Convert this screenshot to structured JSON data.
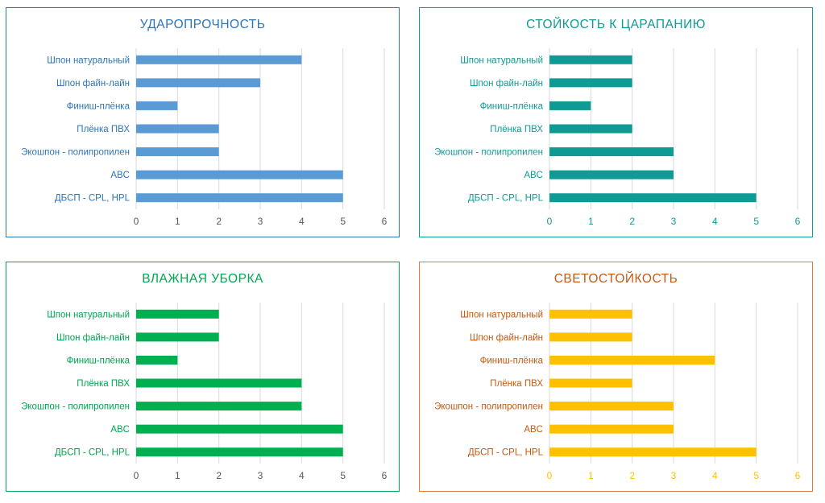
{
  "chart_data": [
    {
      "type": "bar",
      "orientation": "horizontal",
      "title": "УДАРОПРОЧНОСТЬ",
      "categories": [
        "Шпон натуральный",
        "Шпон файн-лайн",
        "Финиш-плёнка",
        "Плёнка ПВХ",
        "Экошпон - полипропилен",
        "ABC",
        "ДБСП - CPL, HPL"
      ],
      "values": [
        4,
        3,
        1,
        2,
        2,
        5,
        5
      ],
      "xlim": [
        0,
        6
      ],
      "xticks": [
        "0",
        "1",
        "2",
        "3",
        "4",
        "5",
        "6"
      ],
      "grid": "vertical",
      "colors": {
        "bar": "#5b9bd5",
        "text": "#2e75b6",
        "border": "#2e75b6",
        "ticks": "#595959"
      }
    },
    {
      "type": "bar",
      "orientation": "horizontal",
      "title": "СТОЙКОСТЬ К ЦАРАПАНИЮ",
      "categories": [
        "Шпон натуральный",
        "Шпон файн-лайн",
        "Финиш-плёнка",
        "Плёнка ПВХ",
        "Экошпон - полипропилен",
        "ABC",
        "ДБСП - CPL, HPL"
      ],
      "values": [
        2,
        2,
        1,
        2,
        3,
        3,
        5
      ],
      "xlim": [
        0,
        6
      ],
      "xticks": [
        "0",
        "1",
        "2",
        "3",
        "4",
        "5",
        "6"
      ],
      "grid": "vertical",
      "colors": {
        "bar": "#0f9b94",
        "text": "#0f9b94",
        "border": "#0f9b94",
        "ticks": "#0f9b94"
      }
    },
    {
      "type": "bar",
      "orientation": "horizontal",
      "title": "ВЛАЖНАЯ УБОРКА",
      "categories": [
        "Шпон натуральный",
        "Шпон файн-лайн",
        "Финиш-плёнка",
        "Плёнка ПВХ",
        "Экошпон - полипропилен",
        "ABC",
        "ДБСП - CPL, HPL"
      ],
      "values": [
        2,
        2,
        1,
        4,
        4,
        5,
        5
      ],
      "xlim": [
        0,
        6
      ],
      "xticks": [
        "0",
        "1",
        "2",
        "3",
        "4",
        "5",
        "6"
      ],
      "grid": "vertical",
      "colors": {
        "bar": "#00b050",
        "text": "#00a651",
        "border": "#00a651",
        "ticks": "#595959"
      }
    },
    {
      "type": "bar",
      "orientation": "horizontal",
      "title": "СВЕТОСТОЙКОСТЬ",
      "categories": [
        "Шпон натуральный",
        "Шпон файн-лайн",
        "Финиш-плёнка",
        "Плёнка ПВХ",
        "Экошпон - полипропилен",
        "ABC",
        "ДБСП - CPL, HPL"
      ],
      "values": [
        2,
        2,
        4,
        2,
        3,
        3,
        5
      ],
      "xlim": [
        0,
        6
      ],
      "xticks": [
        "0",
        "1",
        "2",
        "3",
        "4",
        "5",
        "6"
      ],
      "grid": "vertical",
      "colors": {
        "bar": "#ffc000",
        "text": "#c55a11",
        "border": "#e07b39",
        "ticks": "#ffc000"
      }
    }
  ]
}
